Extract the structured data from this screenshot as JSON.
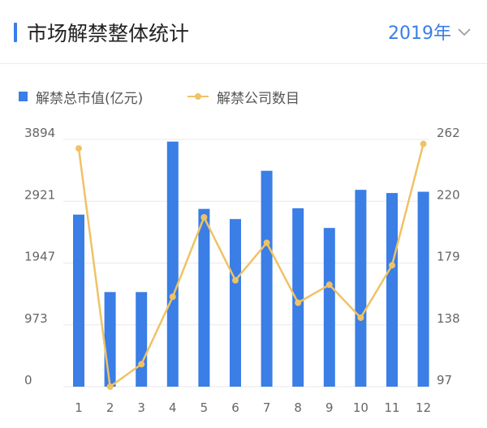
{
  "header": {
    "title": "市场解禁整体统计",
    "year": "2019年",
    "accent_color": "#3a7ee6"
  },
  "legend": {
    "bar_label": "解禁总市值(亿元)",
    "line_label": "解禁公司数目"
  },
  "chart_data": {
    "type": "bar",
    "categories": [
      "1",
      "2",
      "3",
      "4",
      "5",
      "6",
      "7",
      "8",
      "9",
      "10",
      "11",
      "12"
    ],
    "series": [
      {
        "name": "解禁总市值(亿元)",
        "type": "bar",
        "axis": "left",
        "color": "#3a7ee6",
        "values": [
          2710,
          1490,
          1490,
          3860,
          2800,
          2640,
          3400,
          2810,
          2500,
          3100,
          3050,
          3070
        ]
      },
      {
        "name": "解禁公司数目",
        "type": "line",
        "axis": "right",
        "color": "#f0c265",
        "values": [
          256,
          97,
          112,
          157,
          210,
          168,
          193,
          153,
          165,
          143,
          178,
          259
        ]
      }
    ],
    "y_left": {
      "min": 0,
      "max": 3894,
      "ticks": [
        0,
        973,
        1947,
        2921,
        3894
      ]
    },
    "y_right": {
      "min": 97,
      "max": 262,
      "ticks": [
        97,
        138,
        179,
        220,
        262
      ]
    },
    "grid": true,
    "legend_position": "top-left"
  }
}
